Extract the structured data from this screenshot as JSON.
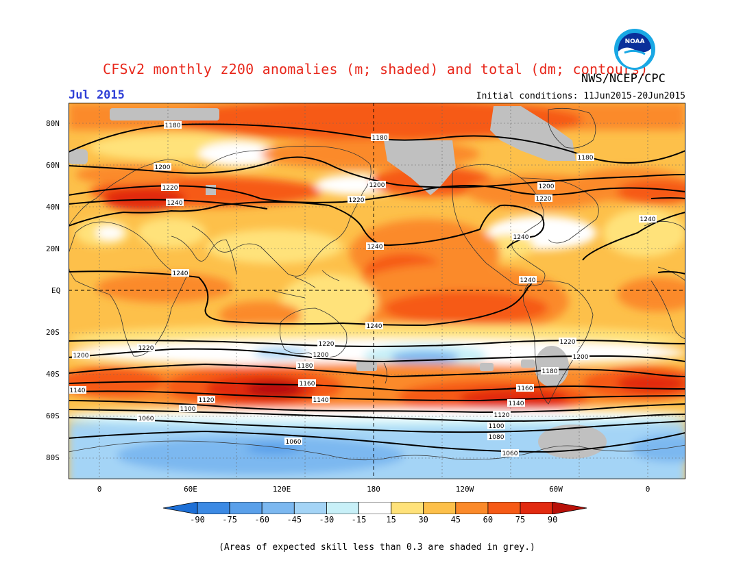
{
  "header": {
    "title": "CFSv2 monthly z200 anomalies (m; shaded) and total (dm; contours)",
    "agency": "NWS/NCEP/CPC",
    "month": "Jul 2015",
    "initial_conditions": "Initial conditions: 11Jun2015-20Jun2015",
    "logo_text": "NOAA"
  },
  "axes": {
    "lat_labels": [
      "80N",
      "60N",
      "40N",
      "20N",
      "EQ",
      "20S",
      "40S",
      "60S",
      "80S"
    ],
    "lon_labels": [
      "0",
      "60E",
      "120E",
      "180",
      "120W",
      "60W",
      "0"
    ]
  },
  "colorbar": {
    "levels": [
      "-90",
      "-75",
      "-60",
      "-45",
      "-30",
      "-15",
      "15",
      "30",
      "45",
      "60",
      "75",
      "90"
    ],
    "colors": [
      "#1d6fd6",
      "#3c8ae4",
      "#5aa0ea",
      "#7cb8f0",
      "#a4d4f6",
      "#c8f0f8",
      "#ffffff",
      "#ffe27a",
      "#fdc04a",
      "#fb8a2a",
      "#f65a16",
      "#e22a10",
      "#b81008"
    ]
  },
  "contours": [
    {
      "label": "1180",
      "lat": 79
    },
    {
      "label": "1200",
      "lat": 59
    },
    {
      "label": "1220",
      "lat": 47
    },
    {
      "label": "1240",
      "lat": 42
    },
    {
      "label": "1240",
      "lat": 20
    },
    {
      "label": "1240",
      "lat": 7
    },
    {
      "label": "1240",
      "lat": -15
    },
    {
      "label": "1220",
      "lat": -27
    },
    {
      "label": "1200",
      "lat": -31
    },
    {
      "label": "1180",
      "lat": -36
    },
    {
      "label": "1160",
      "lat": -45
    },
    {
      "label": "1140",
      "lat": -49
    },
    {
      "label": "1120",
      "lat": -53
    },
    {
      "label": "1100",
      "lat": -57
    },
    {
      "label": "1080",
      "lat": -62
    },
    {
      "label": "1060",
      "lat": -72
    }
  ],
  "footnote": "(Areas of expected skill less than 0.3 are shaded in grey.)"
}
